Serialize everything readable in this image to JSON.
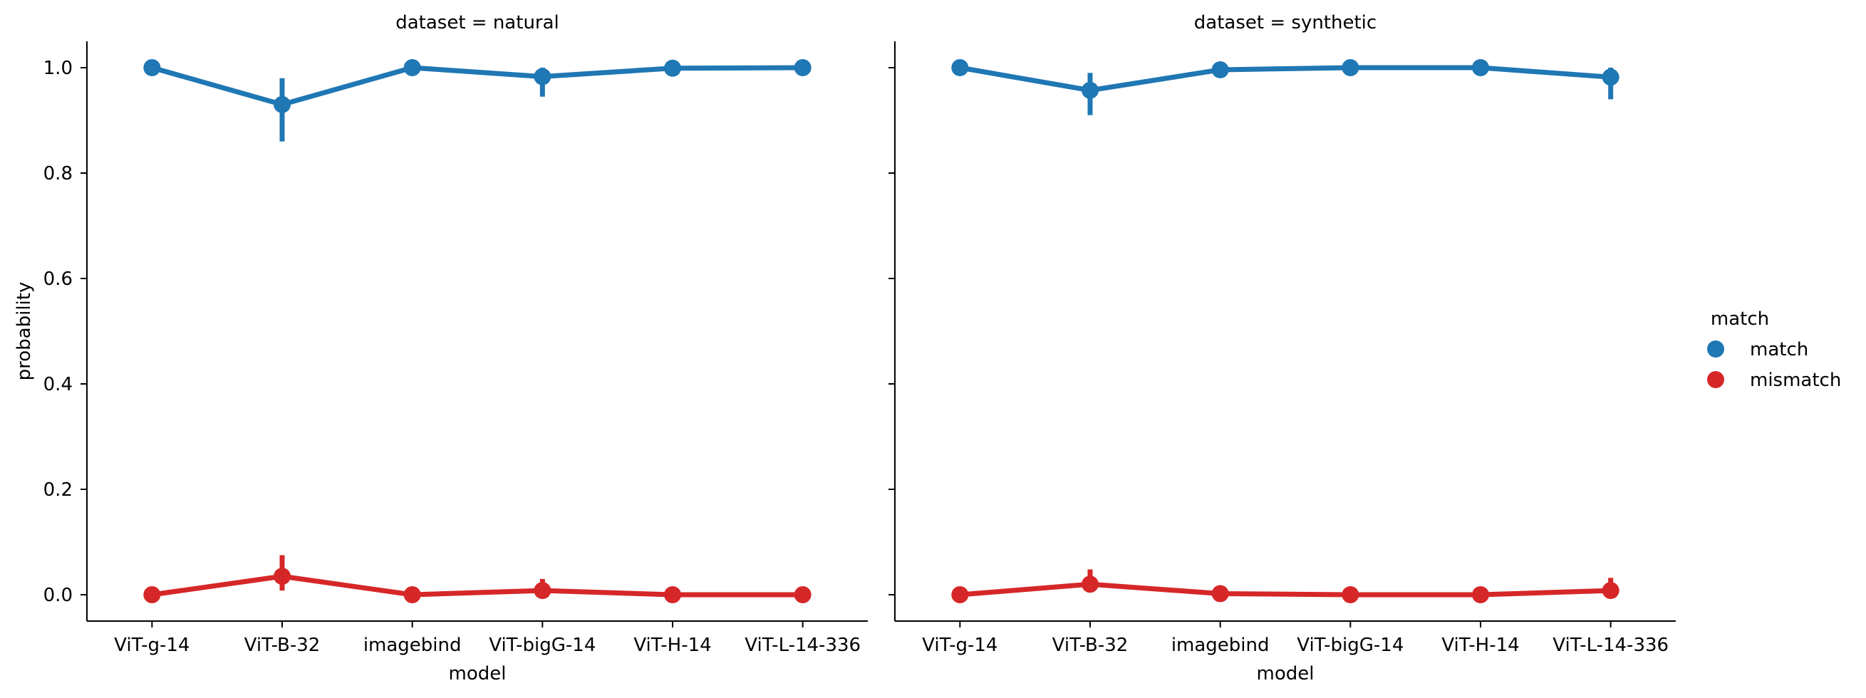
{
  "chart_data": {
    "type": "line",
    "ylabel": "probability",
    "xlabel": "model",
    "ylim": [
      -0.05,
      1.05
    ],
    "yticks": [
      0.0,
      0.2,
      0.4,
      0.6,
      0.8,
      1.0
    ],
    "ytick_labels": [
      "0.0",
      "0.2",
      "0.4",
      "0.6",
      "0.8",
      "1.0"
    ],
    "categories": [
      "ViT-g-14",
      "ViT-B-32",
      "imagebind",
      "ViT-bigG-14",
      "ViT-H-14",
      "ViT-L-14-336"
    ],
    "grid": false,
    "legend": {
      "title": "match",
      "position": "right",
      "entries": [
        {
          "label": "match",
          "color": "#1f77b4"
        },
        {
          "label": "mismatch",
          "color": "#d62728"
        }
      ]
    },
    "panels": [
      {
        "title": "dataset = natural",
        "series": [
          {
            "name": "match",
            "color": "#1f77b4",
            "values": [
              1.0,
              0.93,
              1.0,
              0.983,
              0.999,
              1.0
            ],
            "err_low": [
              1.0,
              0.86,
              1.0,
              0.945,
              0.998,
              1.0
            ],
            "err_high": [
              1.0,
              0.98,
              1.0,
              1.0,
              1.0,
              1.0
            ]
          },
          {
            "name": "mismatch",
            "color": "#d62728",
            "values": [
              0.0,
              0.035,
              0.0,
              0.008,
              0.0,
              0.0
            ],
            "err_low": [
              0.0,
              0.008,
              0.0,
              0.0,
              0.0,
              0.0
            ],
            "err_high": [
              0.0,
              0.075,
              0.0,
              0.03,
              0.0,
              0.0
            ]
          }
        ]
      },
      {
        "title": "dataset = synthetic",
        "series": [
          {
            "name": "match",
            "color": "#1f77b4",
            "values": [
              1.0,
              0.957,
              0.996,
              1.0,
              1.0,
              0.982
            ],
            "err_low": [
              1.0,
              0.91,
              0.99,
              1.0,
              1.0,
              0.94
            ],
            "err_high": [
              1.0,
              0.99,
              1.0,
              1.0,
              1.0,
              1.0
            ]
          },
          {
            "name": "mismatch",
            "color": "#d62728",
            "values": [
              0.0,
              0.02,
              0.002,
              0.0,
              0.0,
              0.008
            ],
            "err_low": [
              0.0,
              0.004,
              0.0,
              0.0,
              0.0,
              0.0
            ],
            "err_high": [
              0.0,
              0.048,
              0.005,
              0.0,
              0.0,
              0.032
            ]
          }
        ]
      }
    ]
  }
}
